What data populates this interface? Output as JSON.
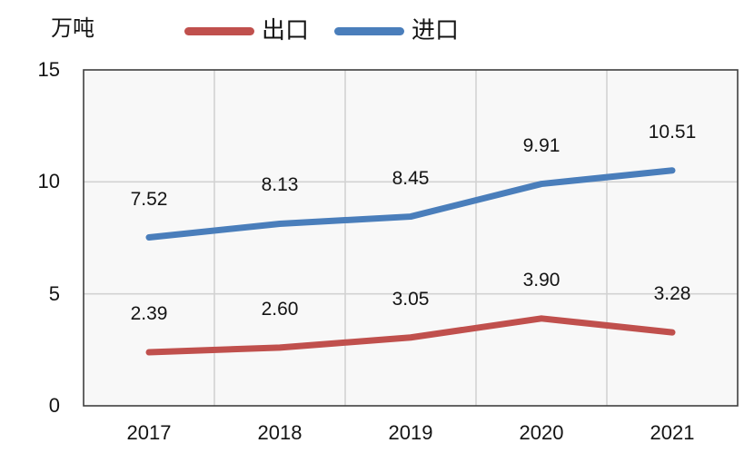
{
  "chart_data": {
    "type": "line",
    "title": "",
    "ylabel": "万吨",
    "xlabel": "",
    "categories": [
      "2017",
      "2018",
      "2019",
      "2020",
      "2021"
    ],
    "series": [
      {
        "name": "出口",
        "color": "#c0504d",
        "values": [
          2.39,
          2.6,
          3.05,
          3.9,
          3.28
        ],
        "labels": [
          "2.39",
          "2.60",
          "3.05",
          "3.90",
          "3.28"
        ]
      },
      {
        "name": "进口",
        "color": "#4a7ebb",
        "values": [
          7.52,
          8.13,
          8.45,
          9.91,
          10.51
        ],
        "labels": [
          "7.52",
          "8.13",
          "8.45",
          "9.91",
          "10.51"
        ]
      }
    ],
    "ylim": [
      0,
      15
    ],
    "y_ticks": [
      15,
      10,
      5,
      0
    ],
    "grid": true,
    "legend_position": "top",
    "colors": {
      "grid": "#d2d2d2",
      "border": "#3f3f3f",
      "plot_bg": "#f8f8f8",
      "text": "#141414"
    }
  }
}
